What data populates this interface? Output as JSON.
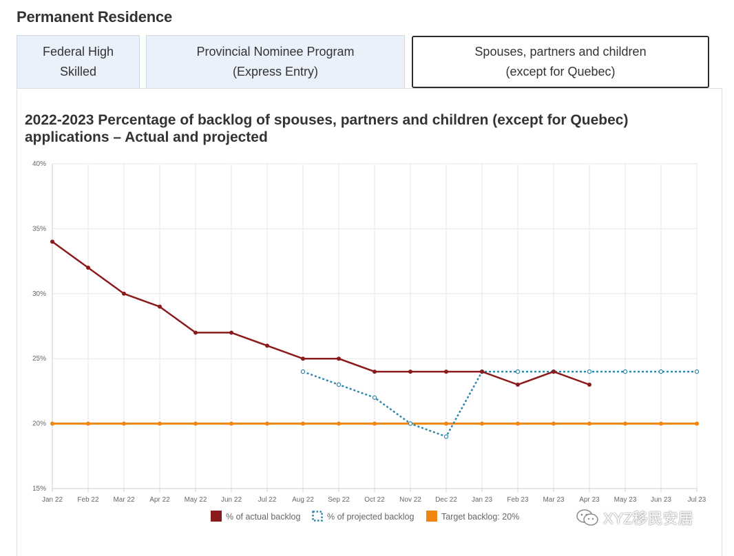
{
  "page": {
    "section_title": "Permanent Residence",
    "tabs": [
      {
        "label": "Federal High\nSkilled",
        "selected": false
      },
      {
        "label": "Provincial Nominee Program\n(Express Entry)",
        "selected": false
      },
      {
        "label": "Spouses, partners and children\n(except for Quebec)",
        "selected": true
      }
    ],
    "watermark": "XYZ移民安居"
  },
  "chart_data": {
    "type": "line",
    "title": "2022-2023 Percentage of backlog of spouses, partners and children (except for Quebec) applications – Actual and projected",
    "xlabel": "",
    "ylabel": "",
    "categories": [
      "Jan 22",
      "Feb 22",
      "Mar 22",
      "Apr 22",
      "May 22",
      "Jun 22",
      "Jul 22",
      "Aug 22",
      "Sep 22",
      "Oct 22",
      "Nov 22",
      "Dec 22",
      "Jan 23",
      "Feb 23",
      "Mar 23",
      "Apr 23",
      "May 23",
      "Jun 23",
      "Jul 23"
    ],
    "yticks": [
      "15%",
      "20%",
      "25%",
      "30%",
      "35%",
      "40%"
    ],
    "ylim": [
      15,
      40
    ],
    "grid": true,
    "legend_position": "bottom",
    "series": [
      {
        "name": "% of actual backlog",
        "color": "#8b1a1a",
        "style": "solid",
        "values": [
          34,
          32,
          30,
          29,
          27,
          27,
          26,
          25,
          25,
          24,
          24,
          24,
          24,
          23,
          24,
          23,
          null,
          null,
          null
        ]
      },
      {
        "name": "% of projected backlog",
        "color": "#2e86a8",
        "style": "dotted",
        "values": [
          null,
          null,
          null,
          null,
          null,
          null,
          null,
          24,
          23,
          22,
          20,
          19,
          24,
          24,
          24,
          24,
          24,
          24,
          24
        ]
      },
      {
        "name": "Target backlog: 20%",
        "color": "#f0860f",
        "style": "solid",
        "values": [
          20,
          20,
          20,
          20,
          20,
          20,
          20,
          20,
          20,
          20,
          20,
          20,
          20,
          20,
          20,
          20,
          20,
          20,
          20
        ]
      }
    ]
  }
}
